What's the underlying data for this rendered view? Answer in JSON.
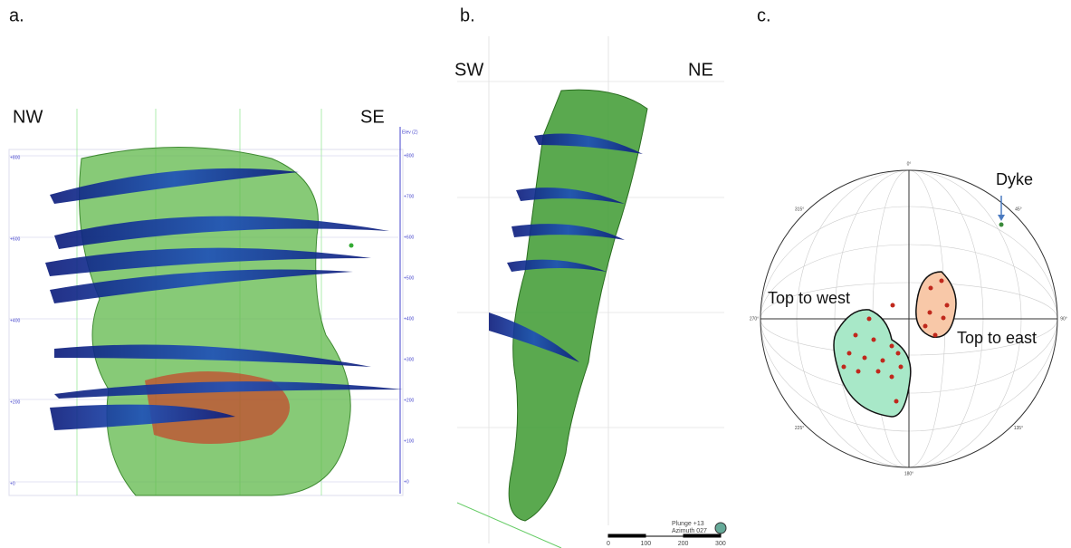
{
  "panels": [
    {
      "label": "a.",
      "left_direction": "NW",
      "right_direction": "SE",
      "elev_label": "Elev (Z)",
      "left_elevations": [
        "+800",
        "+600",
        "+400",
        "+200",
        "+0"
      ],
      "right_elevations": [
        "+800",
        "+700",
        "+600",
        "+500",
        "+400",
        "+300",
        "+200",
        "+100",
        "+0"
      ]
    },
    {
      "label": "b.",
      "left_direction": "SW",
      "right_direction": "NE",
      "scale_labels": [
        "0",
        "100",
        "200",
        "300"
      ],
      "plunge": "Plunge +13",
      "azimuth": "Azimuth 027"
    },
    {
      "label": "c.",
      "azimuths": [
        "0°",
        "45°",
        "90°",
        "135°",
        "180°",
        "225°",
        "270°",
        "315°"
      ],
      "domains": [
        "Top to west",
        "Top to east"
      ],
      "dyke": "Dyke"
    }
  ]
}
